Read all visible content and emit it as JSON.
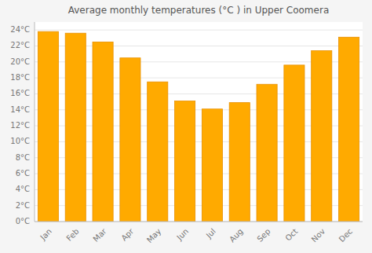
{
  "chart_data": {
    "type": "bar",
    "title": "Average monthly temperatures (°C ) in Upper Coomera",
    "categories": [
      "Jan",
      "Feb",
      "Mar",
      "Apr",
      "May",
      "Jun",
      "Jul",
      "Aug",
      "Sep",
      "Oct",
      "Nov",
      "Dec"
    ],
    "values": [
      23.8,
      23.6,
      22.5,
      20.5,
      17.5,
      15.1,
      14.1,
      14.9,
      17.2,
      19.6,
      21.4,
      23.1
    ],
    "color": "#FFAA00",
    "ylim": [
      0,
      25
    ],
    "yticks": [
      {
        "value": 0,
        "label": "0°C"
      },
      {
        "value": 2,
        "label": "2°C"
      },
      {
        "value": 4,
        "label": "4°C"
      },
      {
        "value": 6,
        "label": "6°C"
      },
      {
        "value": 8,
        "label": "8°C"
      },
      {
        "value": 10,
        "label": "10°C"
      },
      {
        "value": 12,
        "label": "12°C"
      },
      {
        "value": 14,
        "label": "14°C"
      },
      {
        "value": 16,
        "label": "16°C"
      },
      {
        "value": 18,
        "label": "18°C"
      },
      {
        "value": 20,
        "label": "20°C"
      },
      {
        "value": 22,
        "label": "22°C"
      },
      {
        "value": 24,
        "label": "24°C"
      }
    ],
    "grid": true
  }
}
